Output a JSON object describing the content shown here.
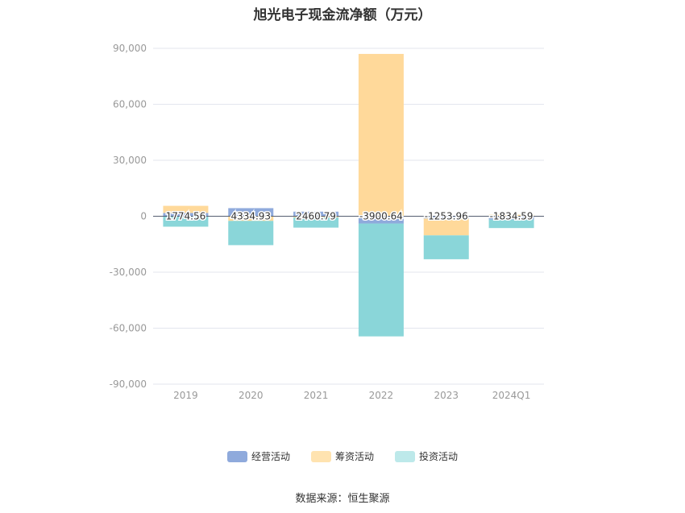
{
  "chart_data": {
    "type": "bar",
    "stacked": true,
    "title": "旭光电子现金流净额（万元）",
    "categories": [
      "2019",
      "2020",
      "2021",
      "2022",
      "2023",
      "2024Q1"
    ],
    "yticks": [
      "90,000",
      "60,000",
      "30,000",
      "0",
      "-30,000",
      "-60,000",
      "-90,000"
    ],
    "ylim": [
      -90000,
      90000
    ],
    "grid": true,
    "legend_position": "bottom",
    "series": [
      {
        "name": "经营活动",
        "color": "#8FAADC",
        "values": [
          1774.56,
          4334.93,
          2460.79,
          -3900.64,
          -1253.96,
          -1834.59
        ]
      },
      {
        "name": "筹资活动",
        "color": "#FFD99A",
        "values": [
          3800,
          -2500,
          -600,
          87000,
          -9000,
          800
        ]
      },
      {
        "name": "投资活动",
        "color": "#8AD6D9",
        "values": [
          -5600,
          -13000,
          -5500,
          -60500,
          -12800,
          -4500
        ]
      }
    ],
    "data_labels": [
      "1774.56",
      "4334.93",
      "2460.79",
      "-3900.64",
      "-1253.96",
      "-1834.59"
    ],
    "source": "数据来源：恒生聚源"
  },
  "legend": {
    "items": [
      {
        "label": "经营活动",
        "color": "#8FAADC"
      },
      {
        "label": "筹资活动",
        "color": "#FFE3B0"
      },
      {
        "label": "投资活动",
        "color": "#BDE9EA"
      }
    ]
  }
}
